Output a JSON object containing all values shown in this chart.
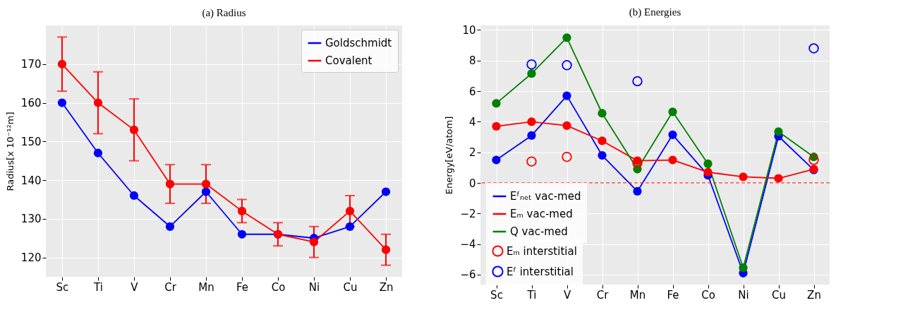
{
  "chart_data": [
    {
      "type": "line",
      "title": "(a) Radius",
      "ylabel": "Radius[x 10⁻¹²m]",
      "categories": [
        "Sc",
        "Ti",
        "V",
        "Cr",
        "Mn",
        "Fe",
        "Co",
        "Ni",
        "Cu",
        "Zn"
      ],
      "ylim": [
        115,
        180
      ],
      "yticks": [
        120,
        130,
        140,
        150,
        160,
        170
      ],
      "grid": true,
      "legend": "top right",
      "marker": "circle",
      "line_style": "solid",
      "series": [
        {
          "name": "Goldschmidt",
          "color": "#0000ff",
          "values": [
            160,
            147,
            136,
            128,
            137,
            126,
            126,
            125,
            128,
            137
          ]
        },
        {
          "name": "Covalent",
          "color": "#ff0000",
          "values": [
            170,
            160,
            153,
            139,
            139,
            132,
            126,
            124,
            132,
            122
          ],
          "errors": [
            7,
            8,
            8,
            5,
            5,
            3,
            3,
            4,
            4,
            4
          ]
        }
      ]
    },
    {
      "type": "line",
      "title": "(b) Energies",
      "ylabel": "Energy[eV/atom]",
      "categories": [
        "Sc",
        "Ti",
        "V",
        "Cr",
        "Mn",
        "Fe",
        "Co",
        "Ni",
        "Cu",
        "Zn"
      ],
      "ylim": [
        -6.65,
        10.3
      ],
      "yticks": [
        -6,
        -4,
        -2,
        0,
        2,
        4,
        6,
        8,
        10
      ],
      "grid": true,
      "legend": "bottom left",
      "marker": "circle",
      "line_style": "solid",
      "ref_lines": [
        {
          "axis": "y",
          "value": 0,
          "color": "#ff0000",
          "line_style": "dashed"
        }
      ],
      "series": [
        {
          "name": "Eᶠₙₑₜ vac-med",
          "color": "#0000ff",
          "values": [
            1.5,
            3.1,
            5.7,
            1.8,
            -0.55,
            3.15,
            0.5,
            -5.9,
            3.05,
            0.85
          ]
        },
        {
          "name": "Eₘ vac-med",
          "color": "#ff0000",
          "values": [
            3.7,
            4.0,
            3.75,
            2.75,
            1.45,
            1.5,
            0.7,
            0.4,
            0.3,
            0.9
          ]
        },
        {
          "name": "Q vac-med",
          "color": "#008000",
          "values": [
            5.2,
            7.15,
            9.5,
            4.55,
            0.9,
            4.65,
            1.25,
            -5.55,
            3.35,
            1.7
          ]
        },
        {
          "name": "Eₘ interstitial",
          "type": "scatter",
          "color": "#ff0000",
          "values": [
            null,
            1.4,
            1.7,
            null,
            1.3,
            null,
            null,
            null,
            null,
            1.5
          ]
        },
        {
          "name": "Eᶠ interstitial",
          "type": "scatter",
          "color": "#0000ff",
          "values": [
            null,
            7.75,
            7.7,
            null,
            6.65,
            null,
            null,
            null,
            null,
            8.8
          ]
        }
      ]
    }
  ]
}
